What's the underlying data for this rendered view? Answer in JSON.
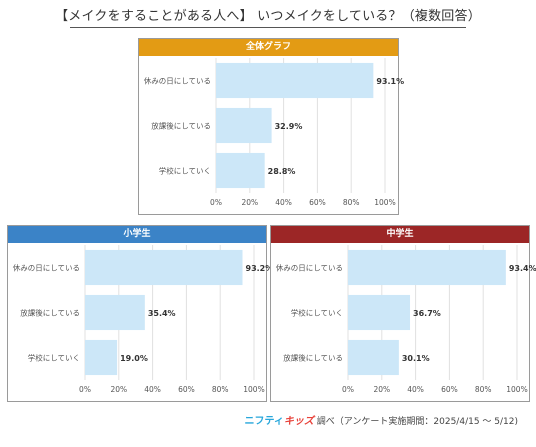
{
  "title": "【メイクをすることがある人へ】 いつメイクをしている？（複数回答）",
  "footer": {
    "brand_part1": "ニフティ",
    "brand_part2": "キッズ",
    "text": " 調べ（アンケート実施期間：2025/4/15 ～ 5/12)"
  },
  "colors": {
    "bar": "#cce7f8",
    "grid": "#e0e0e0",
    "overall_header": "#e39b14",
    "elementary_header": "#3b83c7",
    "junior_header": "#9c2626"
  },
  "chart_data": [
    {
      "type": "bar",
      "orientation": "horizontal",
      "title": "全体グラフ",
      "categories": [
        "休みの日にしている",
        "放課後にしている",
        "学校にしていく"
      ],
      "values": [
        93.1,
        32.9,
        28.8
      ],
      "value_labels": [
        "93.1%",
        "32.9%",
        "28.8%"
      ],
      "xlim": [
        0,
        100
      ],
      "ticks": [
        "0%",
        "20%",
        "40%",
        "60%",
        "80%",
        "100%"
      ],
      "grid": true
    },
    {
      "type": "bar",
      "orientation": "horizontal",
      "title": "小学生",
      "categories": [
        "休みの日にしている",
        "放課後にしている",
        "学校にしていく"
      ],
      "values": [
        93.2,
        35.4,
        19.0
      ],
      "value_labels": [
        "93.2%",
        "35.4%",
        "19.0%"
      ],
      "xlim": [
        0,
        100
      ],
      "ticks": [
        "0%",
        "20%",
        "40%",
        "60%",
        "80%",
        "100%"
      ],
      "grid": true
    },
    {
      "type": "bar",
      "orientation": "horizontal",
      "title": "中学生",
      "categories": [
        "休みの日にしている",
        "学校にしていく",
        "放課後にしている"
      ],
      "values": [
        93.4,
        36.7,
        30.1
      ],
      "value_labels": [
        "93.4%",
        "36.7%",
        "30.1%"
      ],
      "xlim": [
        0,
        100
      ],
      "ticks": [
        "0%",
        "20%",
        "40%",
        "60%",
        "80%",
        "100%"
      ],
      "grid": true
    }
  ]
}
